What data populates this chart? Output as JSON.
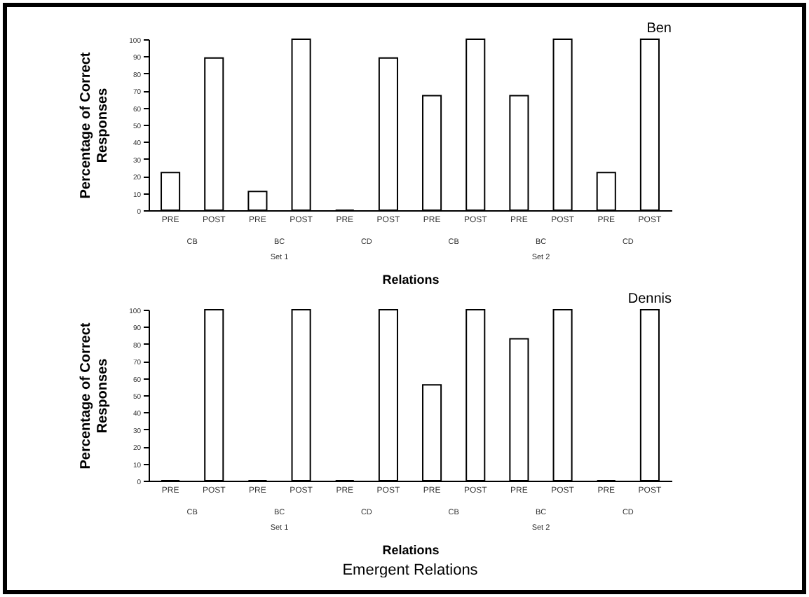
{
  "chart_data": [
    {
      "type": "bar",
      "title": "Ben",
      "xlabel": "Relations",
      "ylabel": "Percentage of Correct Responses",
      "categories": [
        "PRE",
        "POST",
        "PRE",
        "POST",
        "PRE",
        "POST",
        "PRE",
        "POST",
        "PRE",
        "POST",
        "PRE",
        "POST"
      ],
      "values": [
        22,
        89,
        11,
        100,
        0,
        89,
        67,
        100,
        67,
        100,
        22,
        100
      ],
      "color": "#ffffff",
      "ylim": [
        0,
        100
      ],
      "yticks": [
        0,
        10,
        20,
        30,
        40,
        50,
        60,
        70,
        80,
        90,
        100
      ],
      "grid": false,
      "annotations": [
        "CB",
        "BC",
        "CD",
        "CB",
        "BC",
        "CD",
        "Set 1",
        "Set 2"
      ]
    },
    {
      "type": "bar",
      "title": "Dennis",
      "xlabel": "Relations",
      "ylabel": "Percentage of Correct Responses",
      "categories": [
        "PRE",
        "POST",
        "PRE",
        "POST",
        "PRE",
        "POST",
        "PRE",
        "POST",
        "PRE",
        "POST",
        "PRE",
        "POST"
      ],
      "values": [
        0,
        100,
        0,
        100,
        0,
        100,
        56,
        100,
        83,
        100,
        0,
        100
      ],
      "color": "#ffffff",
      "ylim": [
        0,
        100
      ],
      "yticks": [
        0,
        10,
        20,
        30,
        40,
        50,
        60,
        70,
        80,
        90,
        100
      ],
      "grid": false,
      "annotations": [
        "CB",
        "BC",
        "CD",
        "CB",
        "BC",
        "CD",
        "Set 1",
        "Set 2",
        "Emergent Relations"
      ]
    }
  ]
}
